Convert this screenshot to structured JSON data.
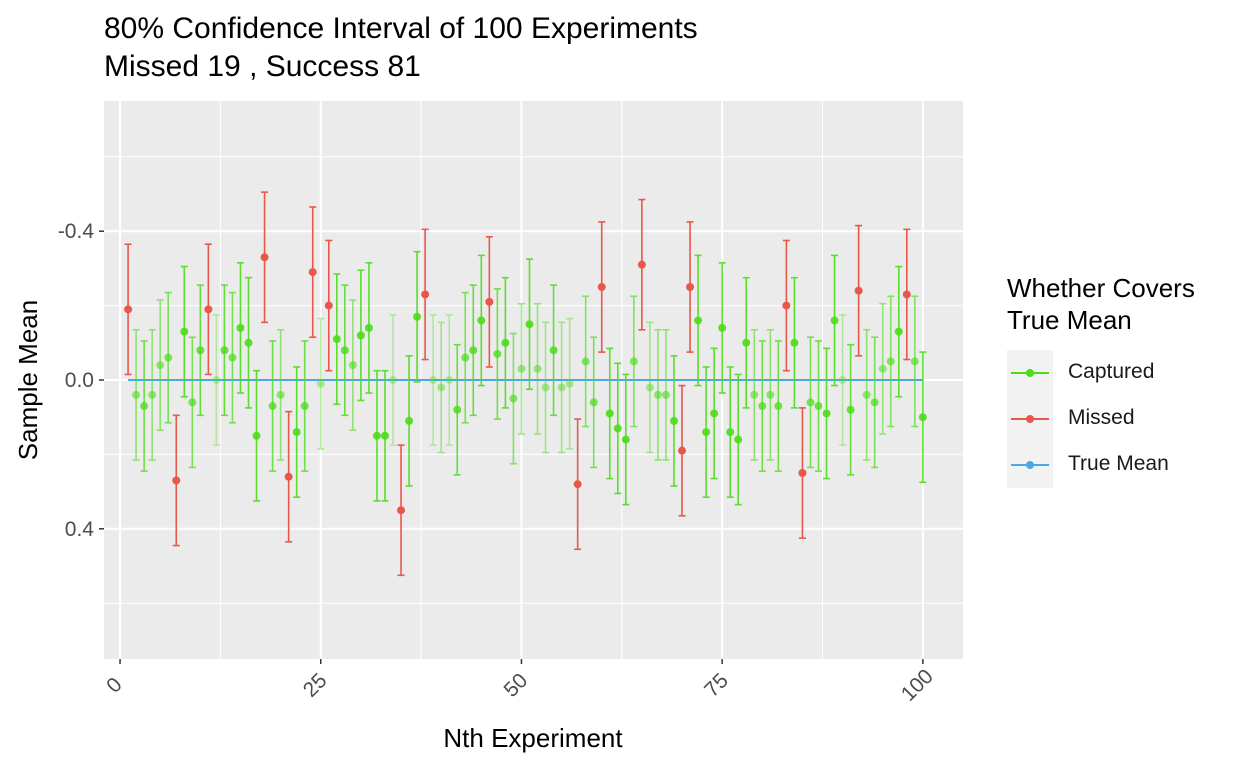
{
  "chart_data": {
    "type": "scatter",
    "title": "80% Confidence Interval of 100 Experiments",
    "subtitle": "Missed 19 , Success 81",
    "xlabel": "Nth Experiment",
    "ylabel": "Sample Mean",
    "xlim": [
      -2,
      105
    ],
    "ylim": [
      0.75,
      -0.75
    ],
    "y_axis_reversed": true,
    "x_ticks": [
      0,
      25,
      50,
      75,
      100
    ],
    "x_tick_labels": [
      "0",
      "25",
      "50",
      "75",
      "100"
    ],
    "y_ticks": [
      -0.4,
      0.0,
      0.4
    ],
    "y_tick_labels": [
      "-0.4",
      "0.0",
      "0.4"
    ],
    "grid": true,
    "legend": {
      "title": "Whether Covers True Mean",
      "title_lines": [
        "Whether Covers",
        "True Mean"
      ],
      "placement": "right",
      "entries": [
        {
          "label": "Captured",
          "color": "#4cdc1a"
        },
        {
          "label": "Missed",
          "color": "#e8584a"
        },
        {
          "label": "True Mean",
          "color": "#4aa8e8"
        }
      ]
    },
    "true_mean": 0.0,
    "interval_half_width": 0.175,
    "series": [
      {
        "name": "Captured",
        "color": "#4cdc1a"
      },
      {
        "name": "Missed",
        "color": "#e8584a"
      },
      {
        "name": "True Mean",
        "color": "#4aa8e8",
        "x": [
          1,
          100
        ],
        "y": [
          0,
          0
        ]
      }
    ],
    "experiments": {
      "x": [
        1,
        2,
        3,
        4,
        5,
        6,
        7,
        8,
        9,
        10,
        11,
        12,
        13,
        14,
        15,
        16,
        17,
        18,
        19,
        20,
        21,
        22,
        23,
        24,
        25,
        26,
        27,
        28,
        29,
        30,
        31,
        32,
        33,
        34,
        35,
        36,
        37,
        38,
        39,
        40,
        41,
        42,
        43,
        44,
        45,
        46,
        47,
        48,
        49,
        50,
        51,
        52,
        53,
        54,
        55,
        56,
        57,
        58,
        59,
        60,
        61,
        62,
        63,
        64,
        65,
        66,
        67,
        68,
        69,
        70,
        71,
        72,
        73,
        74,
        75,
        76,
        77,
        78,
        79,
        80,
        81,
        82,
        83,
        84,
        85,
        86,
        87,
        88,
        89,
        90,
        91,
        92,
        93,
        94,
        95,
        96,
        97,
        98,
        99,
        100
      ],
      "mean": [
        -0.19,
        0.04,
        0.07,
        0.04,
        -0.04,
        -0.06,
        0.27,
        -0.13,
        0.06,
        -0.08,
        -0.19,
        0.0,
        -0.08,
        -0.06,
        -0.14,
        -0.1,
        0.15,
        -0.33,
        0.07,
        0.04,
        0.26,
        0.14,
        0.07,
        -0.29,
        0.01,
        -0.2,
        -0.11,
        -0.08,
        -0.04,
        -0.12,
        -0.14,
        0.15,
        0.15,
        0.0,
        0.35,
        0.11,
        -0.17,
        -0.23,
        0.0,
        0.02,
        0.0,
        0.08,
        -0.06,
        -0.08,
        -0.16,
        -0.21,
        -0.07,
        -0.1,
        0.05,
        -0.03,
        -0.15,
        -0.03,
        0.02,
        -0.08,
        0.02,
        0.01,
        0.28,
        -0.05,
        0.06,
        -0.25,
        0.09,
        0.13,
        0.16,
        -0.05,
        -0.31,
        0.02,
        0.04,
        0.04,
        0.11,
        0.19,
        -0.25,
        -0.16,
        0.14,
        0.09,
        -0.14,
        0.14,
        0.16,
        -0.1,
        0.04,
        0.07,
        0.04,
        0.07,
        -0.2,
        -0.1,
        0.25,
        0.06,
        0.07,
        0.09,
        -0.16,
        0.0,
        0.08,
        -0.24,
        0.04,
        0.06,
        -0.03,
        -0.05,
        -0.13,
        -0.23,
        -0.05,
        0.1
      ],
      "captured": [
        false,
        true,
        true,
        true,
        true,
        true,
        false,
        true,
        true,
        true,
        false,
        true,
        true,
        true,
        true,
        true,
        true,
        false,
        true,
        true,
        false,
        true,
        true,
        false,
        true,
        false,
        true,
        true,
        true,
        true,
        true,
        true,
        true,
        true,
        false,
        true,
        true,
        false,
        true,
        true,
        true,
        true,
        true,
        true,
        true,
        false,
        true,
        true,
        true,
        true,
        true,
        true,
        true,
        true,
        true,
        true,
        false,
        true,
        true,
        false,
        true,
        true,
        true,
        true,
        false,
        true,
        true,
        true,
        true,
        false,
        false,
        true,
        true,
        true,
        true,
        true,
        true,
        true,
        true,
        true,
        true,
        true,
        false,
        true,
        false,
        true,
        true,
        true,
        true,
        true,
        true,
        false,
        true,
        true,
        true,
        true,
        true,
        false,
        true,
        true
      ]
    }
  }
}
